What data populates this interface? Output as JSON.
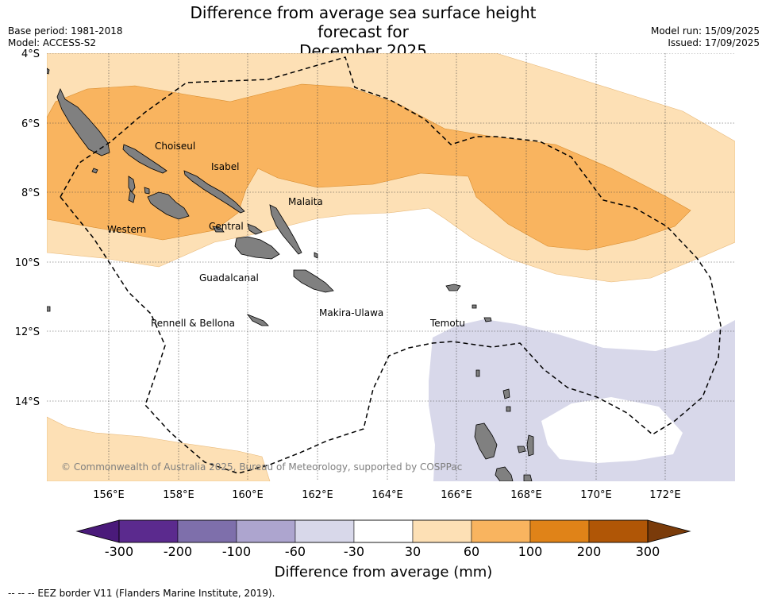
{
  "title_line1": "Difference from average sea surface height forecast for",
  "title_line2": "December 2025",
  "base_period": "Base period: 1981-2018",
  "model": "Model: ACCESS-S2",
  "model_run": "Model run: 15/09/2025",
  "issued": "Issued: 17/09/2025",
  "lat_labels": [
    "4°S",
    "6°S",
    "8°S",
    "10°S",
    "12°S",
    "14°S"
  ],
  "lon_labels": [
    "156°E",
    "158°E",
    "160°E",
    "162°E",
    "164°E",
    "166°E",
    "168°E",
    "170°E",
    "172°E"
  ],
  "provinces": [
    "Choiseul",
    "Isabel",
    "Malaita",
    "Western",
    "Central",
    "Guadalcanal",
    "Makira-Ulawa",
    "Rennell & Bellona",
    "Temotu"
  ],
  "copyright": "© Commonwealth of Australia 2025, Bureau of Meteorology, supported by COSPPac",
  "colorbar": {
    "ticks": [
      "-300",
      "-200",
      "-100",
      "-60",
      "-30",
      "30",
      "60",
      "100",
      "200",
      "300"
    ],
    "colors": [
      "#4a1a7a",
      "#5b2a8e",
      "#7e6fab",
      "#ada5cf",
      "#d8d8ea",
      "#ffffff",
      "#fde0b5",
      "#f9b45f",
      "#e08318",
      "#b05606",
      "#7a3b0a"
    ],
    "label": "Difference from average (mm)"
  },
  "colors": {
    "land": "#808080",
    "light_orange": "#fde0b5",
    "mid_orange": "#f9b45f",
    "light_purple": "#d8d8ea"
  },
  "footer": "--  --  -- EEZ border V11 (Flanders Marine Institute, 2019)."
}
